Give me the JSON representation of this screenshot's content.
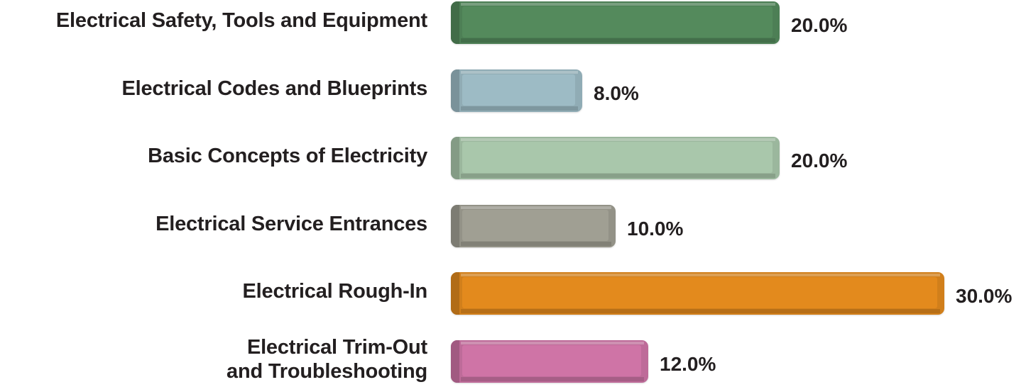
{
  "chart_data": {
    "type": "bar",
    "orientation": "horizontal",
    "categories": [
      "Electrical Safety, Tools and Equipment",
      "Electrical Codes and Blueprints",
      "Basic Concepts of Electricity",
      "Electrical Service Entrances",
      "Electrical Rough-In",
      "Electrical Trim-Out\nand Troubleshooting"
    ],
    "values": [
      20.0,
      8.0,
      20.0,
      10.0,
      30.0,
      12.0
    ],
    "value_labels": [
      "20.0%",
      "8.0%",
      "20.0%",
      "10.0%",
      "30.0%",
      "12.0%"
    ],
    "colors": [
      "#548a5c",
      "#9dbbc5",
      "#a9c7ab",
      "#a09f93",
      "#e38a1d",
      "#cf74a6"
    ],
    "xlim": [
      0,
      30
    ],
    "grid": false,
    "legend": "none"
  }
}
